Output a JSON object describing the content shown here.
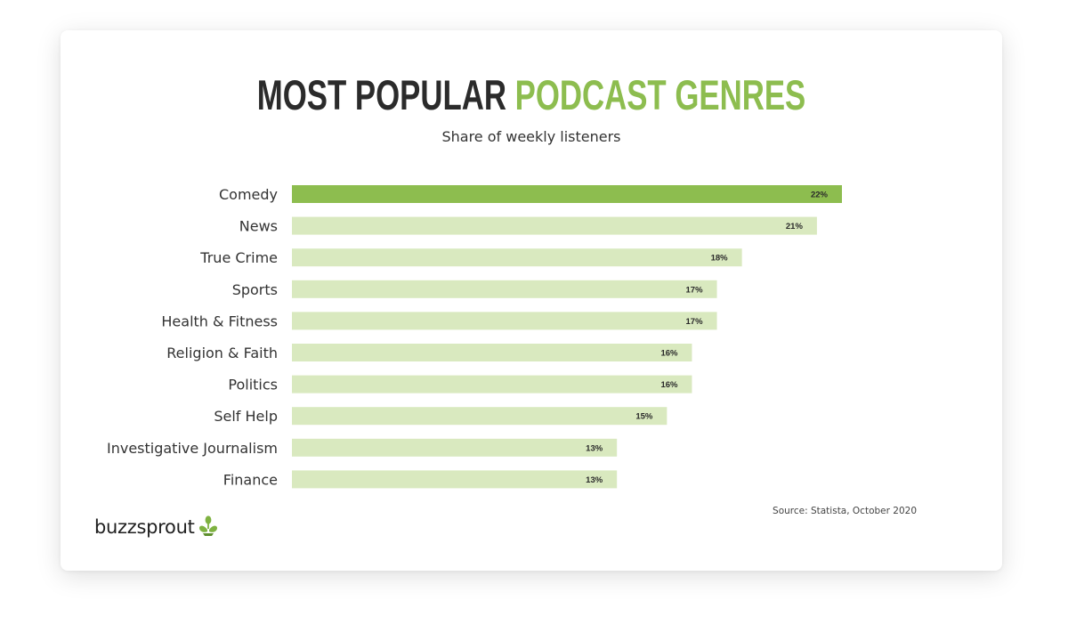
{
  "title": {
    "part1": "MOST POPULAR",
    "part2": "PODCAST GENRES"
  },
  "subtitle": "Share of weekly listeners",
  "source": "Source: Statista, October 2020",
  "brand": {
    "name": "buzzsprout",
    "icon": "sprout-icon"
  },
  "colors": {
    "highlight": "#8dbd4f",
    "bar": "#d9e9bf",
    "title_dark": "#2b2b2b",
    "title_accent": "#8dbd4f"
  },
  "chart_data": {
    "type": "bar",
    "orientation": "horizontal",
    "categories": [
      "Comedy",
      "News",
      "True Crime",
      "Sports",
      "Health & Fitness",
      "Religion & Faith",
      "Politics",
      "Self Help",
      "Investigative Journalism",
      "Finance"
    ],
    "values": [
      22,
      21,
      18,
      17,
      17,
      16,
      16,
      15,
      13,
      13
    ],
    "value_labels": [
      "22%",
      "21%",
      "18%",
      "17%",
      "17%",
      "16%",
      "16%",
      "15%",
      "13%",
      "13%"
    ],
    "highlighted_category": "Comedy",
    "unit": "%",
    "xlim": [
      0,
      22
    ],
    "grid": false,
    "legend": "none"
  }
}
